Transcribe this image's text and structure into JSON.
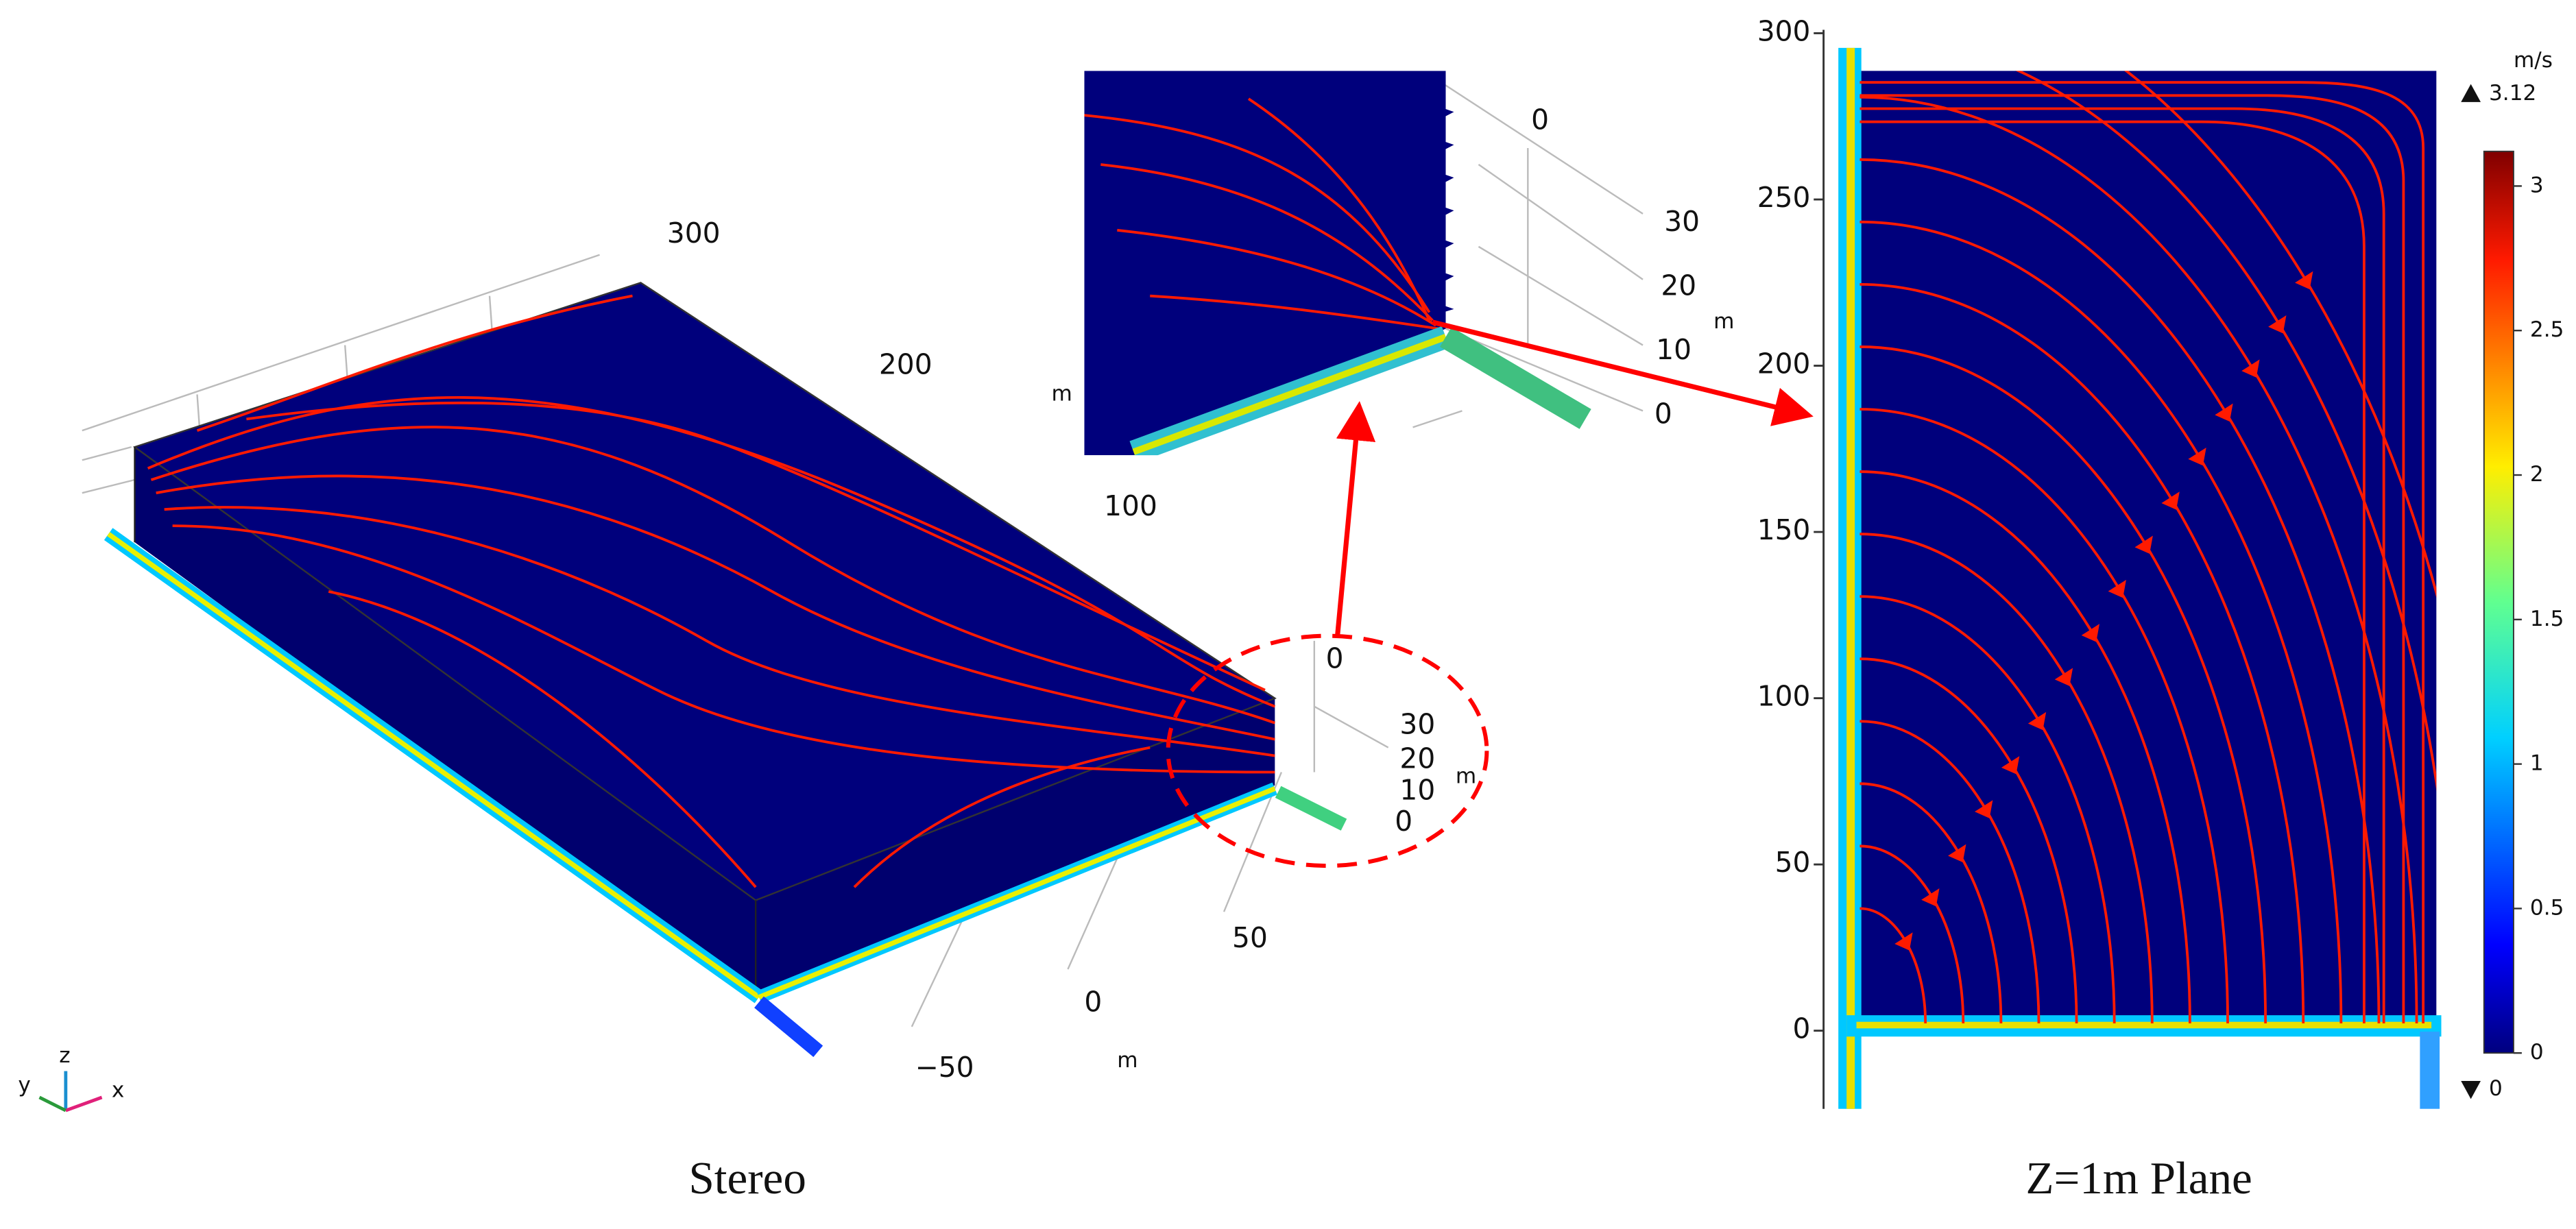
{
  "stereo": {
    "caption": "Stereo",
    "x_axis_ticks": [
      300,
      200,
      100
    ],
    "y_axis_ticks": [
      50,
      0,
      "−50"
    ],
    "y_axis_unit": "m",
    "z_axis_top_tick": 0,
    "z_axis_ticks": [
      30,
      20,
      10,
      0
    ],
    "z_axis_unit": "m",
    "triad": [
      "y",
      "z",
      "x"
    ]
  },
  "inset": {
    "side_unit": "m",
    "z_axis_top_tick": 0,
    "z_axis_ticks": [
      30,
      20,
      10,
      0
    ],
    "z_axis_unit": "m"
  },
  "plane": {
    "caption": "Z=1m Plane",
    "ylim": [
      -24,
      303
    ],
    "yticks": [
      0,
      50,
      100,
      150,
      200,
      250,
      300
    ]
  },
  "colorbar": {
    "unit": "m/s",
    "max": 3.12,
    "min": 0,
    "ticks": [
      0,
      0.5,
      1,
      1.5,
      2,
      2.5,
      3
    ]
  }
}
